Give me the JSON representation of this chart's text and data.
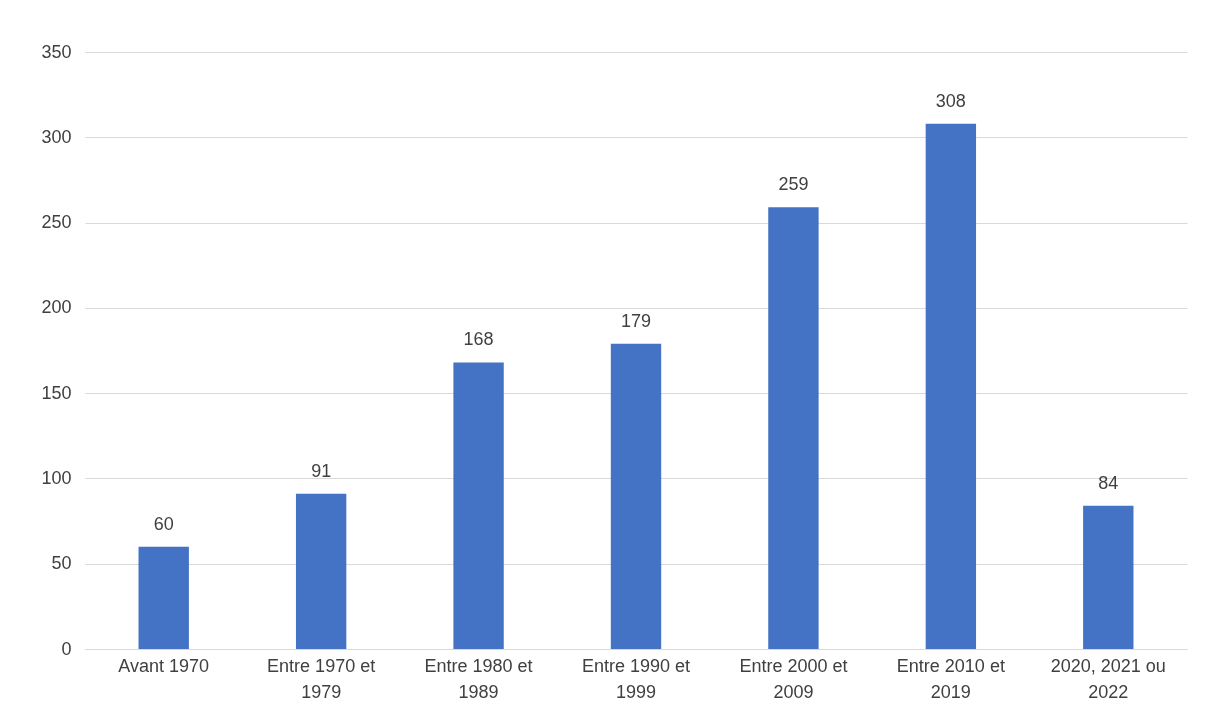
{
  "chart_data": {
    "type": "bar",
    "categories": [
      "Avant 1970",
      "Entre 1970 et\n1979",
      "Entre 1980 et\n1989",
      "Entre 1990 et\n1999",
      "Entre 2000 et\n2009",
      "Entre 2010 et\n2019",
      "2020, 2021 ou\n2022"
    ],
    "values": [
      60,
      91,
      168,
      179,
      259,
      308,
      84
    ],
    "color": "#4472c4",
    "ylim": [
      0,
      350
    ],
    "yticks": [
      0,
      50,
      100,
      150,
      200,
      250,
      300,
      350
    ],
    "grid": "y",
    "data_labels": true
  }
}
